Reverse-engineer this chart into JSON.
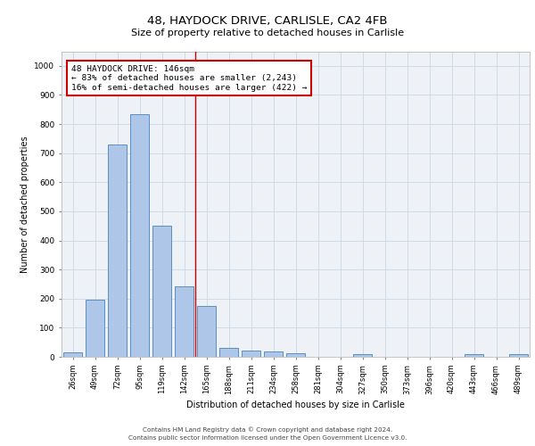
{
  "title1": "48, HAYDOCK DRIVE, CARLISLE, CA2 4FB",
  "title2": "Size of property relative to detached houses in Carlisle",
  "xlabel": "Distribution of detached houses by size in Carlisle",
  "ylabel": "Number of detached properties",
  "bar_labels": [
    "26sqm",
    "49sqm",
    "72sqm",
    "95sqm",
    "119sqm",
    "142sqm",
    "165sqm",
    "188sqm",
    "211sqm",
    "234sqm",
    "258sqm",
    "281sqm",
    "304sqm",
    "327sqm",
    "350sqm",
    "373sqm",
    "396sqm",
    "420sqm",
    "443sqm",
    "466sqm",
    "489sqm"
  ],
  "bar_values": [
    15,
    195,
    730,
    835,
    450,
    243,
    175,
    32,
    22,
    18,
    12,
    0,
    0,
    8,
    0,
    0,
    0,
    0,
    10,
    0,
    8
  ],
  "bar_color": "#aec6e8",
  "bar_edge_color": "#5a8fc2",
  "vline_x": 5.5,
  "vline_color": "#cc0000",
  "annot_line1": "48 HAYDOCK DRIVE: 146sqm",
  "annot_line2": "← 83% of detached houses are smaller (2,243)",
  "annot_line3": "16% of semi-detached houses are larger (422) →",
  "annotation_box_color": "#cc0000",
  "annotation_box_facecolor": "white",
  "ylim": [
    0,
    1050
  ],
  "yticks": [
    0,
    100,
    200,
    300,
    400,
    500,
    600,
    700,
    800,
    900,
    1000
  ],
  "grid_color": "#c8d8e8",
  "bg_color": "#eef2f7",
  "footer_line1": "Contains HM Land Registry data © Crown copyright and database right 2024.",
  "footer_line2": "Contains public sector information licensed under the Open Government Licence v3.0."
}
